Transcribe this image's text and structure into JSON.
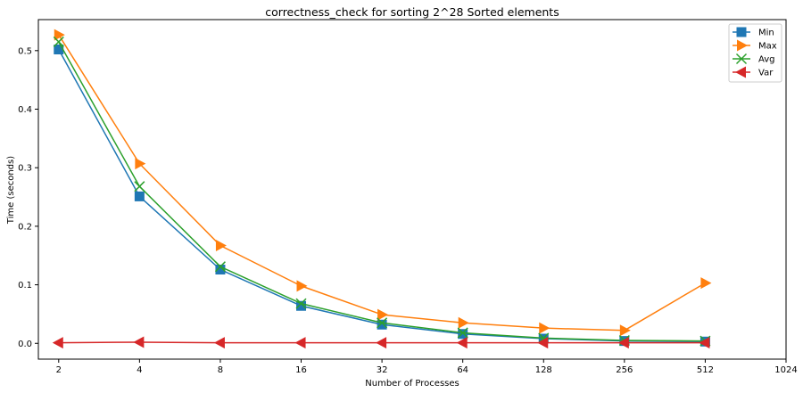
{
  "chart_data": {
    "type": "line",
    "title": "correctness_check for sorting 2^28 Sorted elements",
    "xlabel": "Number of Processes",
    "ylabel": "Time (seconds)",
    "x_scale": "log2",
    "x_ticks": [
      2,
      4,
      8,
      16,
      32,
      64,
      128,
      256,
      512,
      1024
    ],
    "xlim": [
      1.68,
      1024
    ],
    "y_ticks": [
      0.0,
      0.1,
      0.2,
      0.3,
      0.4,
      0.5
    ],
    "ylim": [
      -0.027,
      0.553
    ],
    "grid": false,
    "legend_position": "top-right",
    "x": [
      2,
      4,
      8,
      16,
      32,
      64,
      128,
      256,
      512
    ],
    "series": [
      {
        "name": "Min",
        "color": "#1f77b4",
        "marker": "square",
        "values": [
          0.502,
          0.251,
          0.126,
          0.064,
          0.032,
          0.016,
          0.008,
          0.004,
          0.003
        ]
      },
      {
        "name": "Max",
        "color": "#ff7f0e",
        "marker": "triangle-right",
        "values": [
          0.527,
          0.307,
          0.167,
          0.098,
          0.049,
          0.035,
          0.026,
          0.022,
          0.103
        ]
      },
      {
        "name": "Avg",
        "color": "#2ca02c",
        "marker": "x",
        "values": [
          0.515,
          0.268,
          0.131,
          0.068,
          0.035,
          0.018,
          0.009,
          0.005,
          0.004
        ]
      },
      {
        "name": "Var",
        "color": "#d62728",
        "marker": "triangle-left",
        "values": [
          0.001,
          0.002,
          0.001,
          0.001,
          0.001,
          0.001,
          0.001,
          0.001,
          0.001
        ]
      }
    ]
  }
}
